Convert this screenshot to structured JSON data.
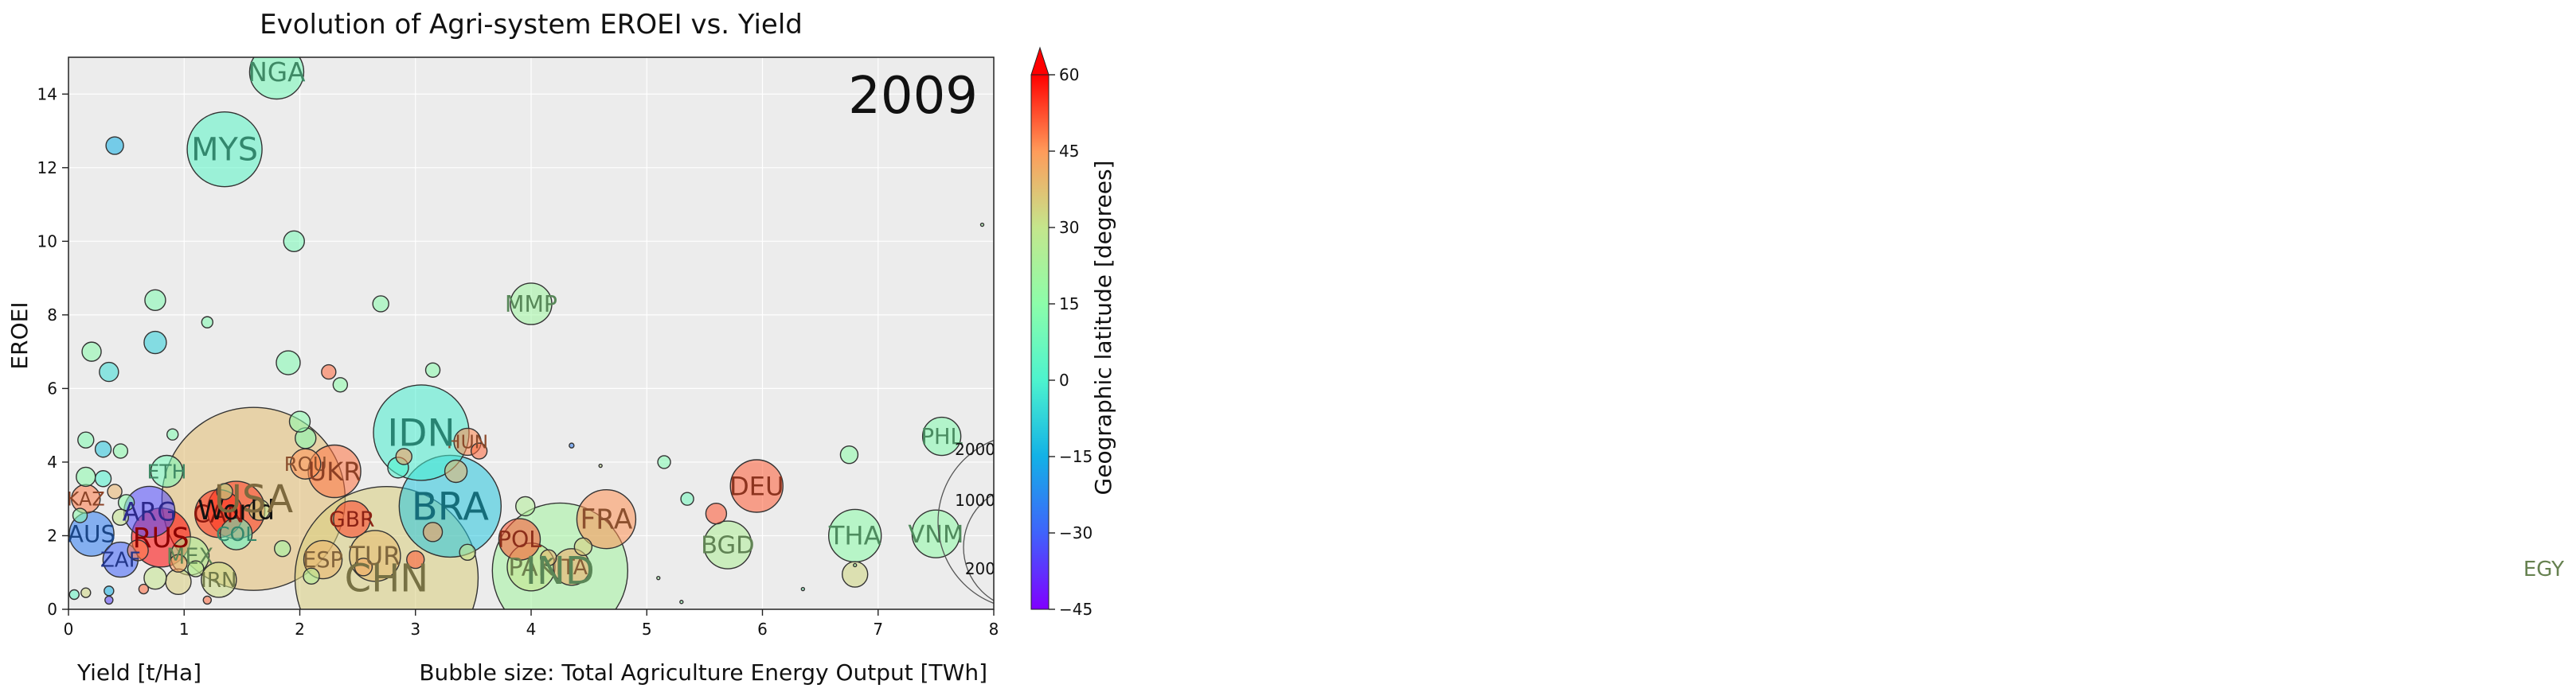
{
  "chart_data": {
    "type": "scatter",
    "title": "Evolution of Agri-system EROEI vs. Yield",
    "year_label": "2009",
    "xlabel": "Yield [t/Ha]",
    "ylabel": "EROEI",
    "size_label": "Bubble size: Total Agriculture Energy Output [TWh]",
    "colorbar_label": "Geographic latitude [degrees]",
    "xlim": [
      0,
      8
    ],
    "ylim": [
      0,
      15
    ],
    "x_ticks": [
      "0",
      "1",
      "2",
      "3",
      "4",
      "5",
      "6",
      "7",
      "8"
    ],
    "y_ticks": [
      "0",
      "2",
      "4",
      "6",
      "8",
      "10",
      "12",
      "14"
    ],
    "colorbar_ticks": [
      "60",
      "45",
      "30",
      "15",
      "0",
      "−15",
      "−30",
      "−45"
    ],
    "colorbar_range": [
      -45,
      60
    ],
    "grid": true,
    "size_legend": [
      {
        "label": "2000",
        "r": 110
      },
      {
        "label": "1000",
        "r": 78
      },
      {
        "label": "200",
        "r": 35
      }
    ],
    "points": [
      {
        "label": "NGA",
        "x": 1.8,
        "y": 14.6,
        "r": 34,
        "lat": 9
      },
      {
        "label": "MYS",
        "x": 1.35,
        "y": 12.5,
        "r": 47,
        "lat": 3
      },
      {
        "label": "MMP",
        "x": 4.0,
        "y": 8.3,
        "r": 26,
        "lat": 20
      },
      {
        "label": "IDN",
        "x": 3.05,
        "y": 4.8,
        "r": 60,
        "lat": -1
      },
      {
        "label": "HUN",
        "x": 3.45,
        "y": 4.55,
        "r": 17,
        "lat": 47
      },
      {
        "label": "UKR",
        "x": 2.3,
        "y": 3.75,
        "r": 33,
        "lat": 49
      },
      {
        "label": "ROU",
        "x": 2.05,
        "y": 3.95,
        "r": 19,
        "lat": 46
      },
      {
        "label": "USA",
        "x": 1.6,
        "y": 3.0,
        "r": 115,
        "lat": 38
      },
      {
        "label": "World",
        "x": 1.45,
        "y": 2.7,
        "r": 36,
        "lat": 55
      },
      {
        "label": "CAN",
        "x": 1.3,
        "y": 2.6,
        "r": 30,
        "lat": 56
      },
      {
        "label": "BRA",
        "x": 3.3,
        "y": 2.8,
        "r": 64,
        "lat": -10
      },
      {
        "label": "FRA",
        "x": 4.65,
        "y": 2.45,
        "r": 37,
        "lat": 46
      },
      {
        "label": "DEU",
        "x": 5.95,
        "y": 3.35,
        "r": 33,
        "lat": 51
      },
      {
        "label": "PHL",
        "x": 7.55,
        "y": 4.7,
        "r": 24,
        "lat": 13
      },
      {
        "label": "THA",
        "x": 6.8,
        "y": 2.0,
        "r": 33,
        "lat": 15
      },
      {
        "label": "VNM",
        "x": 7.5,
        "y": 2.05,
        "r": 30,
        "lat": 16
      },
      {
        "label": "BGD",
        "x": 5.7,
        "y": 1.75,
        "r": 30,
        "lat": 24
      },
      {
        "label": "POL",
        "x": 3.9,
        "y": 1.9,
        "r": 26,
        "lat": 52
      },
      {
        "label": "PAK",
        "x": 4.0,
        "y": 1.15,
        "r": 30,
        "lat": 30
      },
      {
        "label": "IND",
        "x": 4.25,
        "y": 1.05,
        "r": 85,
        "lat": 21
      },
      {
        "label": "ITA",
        "x": 4.35,
        "y": 1.15,
        "r": 23,
        "lat": 42
      },
      {
        "label": "CHN",
        "x": 2.75,
        "y": 0.85,
        "r": 115,
        "lat": 35
      },
      {
        "label": "TUR",
        "x": 2.65,
        "y": 1.45,
        "r": 32,
        "lat": 39
      },
      {
        "label": "ESP",
        "x": 2.2,
        "y": 1.35,
        "r": 24,
        "lat": 40
      },
      {
        "label": "GBR",
        "x": 2.45,
        "y": 2.45,
        "r": 23,
        "lat": 54
      },
      {
        "label": "ETH",
        "x": 0.85,
        "y": 3.75,
        "r": 20,
        "lat": 9
      },
      {
        "label": "KAZ",
        "x": 0.15,
        "y": 3.0,
        "r": 18,
        "lat": 48
      },
      {
        "label": "AUS",
        "x": 0.2,
        "y": 2.05,
        "r": 28,
        "lat": -25
      },
      {
        "label": "ARG",
        "x": 0.7,
        "y": 2.65,
        "r": 32,
        "lat": -34
      },
      {
        "label": "RUS",
        "x": 0.8,
        "y": 1.95,
        "r": 37,
        "lat": 61
      },
      {
        "label": "ZAF",
        "x": 0.45,
        "y": 1.35,
        "r": 22,
        "lat": -30
      },
      {
        "label": "MEX",
        "x": 1.05,
        "y": 1.45,
        "r": 24,
        "lat": 23
      },
      {
        "label": "COL",
        "x": 1.45,
        "y": 2.05,
        "r": 20,
        "lat": 4
      },
      {
        "label": "IRN",
        "x": 1.3,
        "y": 0.8,
        "r": 22,
        "lat": 32
      },
      {
        "label": "",
        "x": 0.4,
        "y": 12.6,
        "r": 11,
        "lat": -15
      },
      {
        "label": "",
        "x": 1.95,
        "y": 10.0,
        "r": 13,
        "lat": 10
      },
      {
        "label": "",
        "x": 0.75,
        "y": 8.4,
        "r": 13,
        "lat": 12
      },
      {
        "label": "",
        "x": 0.75,
        "y": 7.25,
        "r": 14,
        "lat": -8
      },
      {
        "label": "",
        "x": 0.2,
        "y": 7.0,
        "r": 12,
        "lat": 14
      },
      {
        "label": "",
        "x": 1.9,
        "y": 6.7,
        "r": 15,
        "lat": 12
      },
      {
        "label": "",
        "x": 2.7,
        "y": 8.3,
        "r": 10,
        "lat": 14
      },
      {
        "label": "",
        "x": 1.2,
        "y": 7.8,
        "r": 7,
        "lat": 12
      },
      {
        "label": "",
        "x": 0.35,
        "y": 6.45,
        "r": 12,
        "lat": -5
      },
      {
        "label": "",
        "x": 2.25,
        "y": 6.45,
        "r": 9,
        "lat": 50
      },
      {
        "label": "",
        "x": 2.35,
        "y": 6.1,
        "r": 9,
        "lat": 15
      },
      {
        "label": "",
        "x": 3.15,
        "y": 6.5,
        "r": 9,
        "lat": 14
      },
      {
        "label": "",
        "x": 6.75,
        "y": 4.2,
        "r": 11,
        "lat": 15
      },
      {
        "label": "",
        "x": 5.15,
        "y": 4.0,
        "r": 8,
        "lat": 12
      },
      {
        "label": "",
        "x": 5.35,
        "y": 3.0,
        "r": 8,
        "lat": 8
      },
      {
        "label": "",
        "x": 5.6,
        "y": 2.6,
        "r": 13,
        "lat": 52
      },
      {
        "label": "",
        "x": 6.8,
        "y": 0.95,
        "r": 16,
        "lat": 33
      },
      {
        "label": "",
        "x": 3.35,
        "y": 3.75,
        "r": 14,
        "lat": 40
      },
      {
        "label": "",
        "x": 3.55,
        "y": 4.3,
        "r": 10,
        "lat": 50
      },
      {
        "label": "",
        "x": 3.95,
        "y": 2.8,
        "r": 12,
        "lat": 25
      },
      {
        "label": "",
        "x": 4.45,
        "y": 1.7,
        "r": 11,
        "lat": 35
      },
      {
        "label": "",
        "x": 4.15,
        "y": 1.4,
        "r": 10,
        "lat": 40
      },
      {
        "label": "",
        "x": 3.15,
        "y": 2.1,
        "r": 12,
        "lat": 45
      },
      {
        "label": "",
        "x": 3.45,
        "y": 1.55,
        "r": 10,
        "lat": 30
      },
      {
        "label": "",
        "x": 3.0,
        "y": 1.35,
        "r": 11,
        "lat": 52
      },
      {
        "label": "",
        "x": 2.85,
        "y": 3.85,
        "r": 13,
        "lat": 0
      },
      {
        "label": "",
        "x": 2.9,
        "y": 4.15,
        "r": 10,
        "lat": 45
      },
      {
        "label": "",
        "x": 2.05,
        "y": 4.65,
        "r": 13,
        "lat": 12
      },
      {
        "label": "",
        "x": 2.0,
        "y": 5.1,
        "r": 13,
        "lat": 14
      },
      {
        "label": "",
        "x": 0.15,
        "y": 4.6,
        "r": 10,
        "lat": 12
      },
      {
        "label": "",
        "x": 0.3,
        "y": 4.35,
        "r": 10,
        "lat": -10
      },
      {
        "label": "",
        "x": 0.45,
        "y": 4.3,
        "r": 9,
        "lat": 14
      },
      {
        "label": "",
        "x": 0.15,
        "y": 3.6,
        "r": 12,
        "lat": 14
      },
      {
        "label": "",
        "x": 0.3,
        "y": 3.55,
        "r": 10,
        "lat": 0
      },
      {
        "label": "",
        "x": 0.4,
        "y": 3.2,
        "r": 9,
        "lat": 40
      },
      {
        "label": "",
        "x": 0.5,
        "y": 2.9,
        "r": 10,
        "lat": 15
      },
      {
        "label": "",
        "x": 0.45,
        "y": 2.5,
        "r": 10,
        "lat": 30
      },
      {
        "label": "",
        "x": 0.1,
        "y": 2.55,
        "r": 9,
        "lat": 14
      },
      {
        "label": "",
        "x": 0.9,
        "y": 4.75,
        "r": 7,
        "lat": 12
      },
      {
        "label": "",
        "x": 0.95,
        "y": 0.75,
        "r": 16,
        "lat": 35
      },
      {
        "label": "",
        "x": 0.75,
        "y": 0.85,
        "r": 14,
        "lat": 30
      },
      {
        "label": "",
        "x": 0.6,
        "y": 1.6,
        "r": 13,
        "lat": 48
      },
      {
        "label": "",
        "x": 0.35,
        "y": 0.5,
        "r": 6,
        "lat": -15
      },
      {
        "label": "",
        "x": 0.15,
        "y": 0.45,
        "r": 6,
        "lat": 33
      },
      {
        "label": "",
        "x": 0.05,
        "y": 0.4,
        "r": 6,
        "lat": 5
      },
      {
        "label": "",
        "x": 0.35,
        "y": 0.25,
        "r": 5,
        "lat": -35
      },
      {
        "label": "",
        "x": 1.2,
        "y": 0.25,
        "r": 5,
        "lat": 50
      },
      {
        "label": "",
        "x": 0.95,
        "y": 1.25,
        "r": 11,
        "lat": 45
      },
      {
        "label": "",
        "x": 1.1,
        "y": 1.1,
        "r": 10,
        "lat": 28
      },
      {
        "label": "",
        "x": 0.65,
        "y": 0.55,
        "r": 6,
        "lat": 50
      },
      {
        "label": "",
        "x": 2.55,
        "y": 1.15,
        "r": 11,
        "lat": 42
      },
      {
        "label": "",
        "x": 2.1,
        "y": 0.9,
        "r": 10,
        "lat": 25
      },
      {
        "label": "",
        "x": 1.85,
        "y": 1.65,
        "r": 10,
        "lat": 20
      },
      {
        "label": "",
        "x": 1.65,
        "y": 2.7,
        "r": 13,
        "lat": 30
      },
      {
        "label": "",
        "x": 1.35,
        "y": 3.2,
        "r": 10,
        "lat": 25
      },
      {
        "label": "",
        "x": 4.35,
        "y": 4.45,
        "r": 3,
        "lat": -25
      },
      {
        "label": "",
        "x": 4.6,
        "y": 3.9,
        "r": 2,
        "lat": 30
      },
      {
        "label": "",
        "x": 5.1,
        "y": 0.85,
        "r": 2,
        "lat": 20
      },
      {
        "label": "",
        "x": 5.3,
        "y": 0.2,
        "r": 2,
        "lat": 15
      },
      {
        "label": "",
        "x": 6.35,
        "y": 0.55,
        "r": 2,
        "lat": 10
      },
      {
        "label": "",
        "x": 6.8,
        "y": 1.2,
        "r": 2,
        "lat": 18
      },
      {
        "label": "",
        "x": 7.9,
        "y": 10.45,
        "r": 2,
        "lat": 20
      }
    ],
    "outside_labels": [
      {
        "label": "EGY",
        "lat": 27
      }
    ]
  }
}
